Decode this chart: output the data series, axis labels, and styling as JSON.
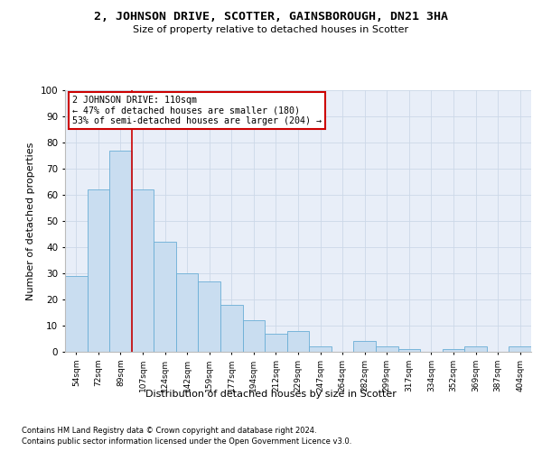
{
  "title": "2, JOHNSON DRIVE, SCOTTER, GAINSBOROUGH, DN21 3HA",
  "subtitle": "Size of property relative to detached houses in Scotter",
  "xlabel": "Distribution of detached houses by size in Scotter",
  "ylabel": "Number of detached properties",
  "categories": [
    "54sqm",
    "72sqm",
    "89sqm",
    "107sqm",
    "124sqm",
    "142sqm",
    "159sqm",
    "177sqm",
    "194sqm",
    "212sqm",
    "229sqm",
    "247sqm",
    "264sqm",
    "282sqm",
    "299sqm",
    "317sqm",
    "334sqm",
    "352sqm",
    "369sqm",
    "387sqm",
    "404sqm"
  ],
  "values": [
    29,
    62,
    77,
    62,
    42,
    30,
    27,
    18,
    12,
    7,
    8,
    2,
    0,
    4,
    2,
    1,
    0,
    1,
    2,
    0,
    2
  ],
  "bar_color": "#c9ddf0",
  "bar_edge_color": "#6aaed6",
  "grid_color": "#ccd8e8",
  "background_color": "#e8eef8",
  "red_line_x": 2.5,
  "annotation_line1": "2 JOHNSON DRIVE: 110sqm",
  "annotation_line2": "← 47% of detached houses are smaller (180)",
  "annotation_line3": "53% of semi-detached houses are larger (204) →",
  "annotation_box_color": "#ffffff",
  "annotation_box_edge": "#cc0000",
  "red_line_color": "#cc0000",
  "ylim": [
    0,
    100
  ],
  "yticks": [
    0,
    10,
    20,
    30,
    40,
    50,
    60,
    70,
    80,
    90,
    100
  ],
  "footer_line1": "Contains HM Land Registry data © Crown copyright and database right 2024.",
  "footer_line2": "Contains public sector information licensed under the Open Government Licence v3.0."
}
